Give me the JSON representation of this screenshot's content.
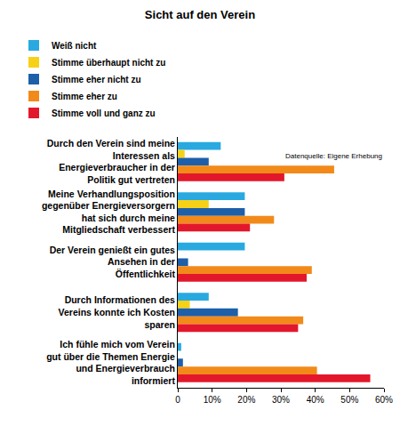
{
  "chart_data": {
    "type": "bar",
    "title": "Sicht auf den Verein",
    "orientation": "horizontal",
    "categories": [
      "Durch den Verein sind meine Interessen als Energieverbraucher in der Politik gut vertreten",
      "Meine Verhandlungsposition gegenüber Energieversorgern hat sich durch meine Mitgliedschaft verbessert",
      "Der Verein genießt ein gutes Ansehen in der Öffentlichkeit",
      "Durch Informationen des Vereins konnte ich Kosten sparen",
      "Ich fühle mich vom Verein gut über die Themen Energie und Energieverbrauch informiert"
    ],
    "series": [
      {
        "name": "Weiß nicht",
        "color": "#29a9e0",
        "values": [
          12.5,
          19.5,
          19.5,
          9,
          1
        ]
      },
      {
        "name": "Stimme überhaupt nicht zu",
        "color": "#f7d117",
        "values": [
          2,
          9,
          0,
          3.5,
          0
        ]
      },
      {
        "name": "Stimme eher nicht zu",
        "color": "#1d5fa8",
        "values": [
          9,
          19.5,
          3,
          17.5,
          1.5
        ]
      },
      {
        "name": "Stimme eher zu",
        "color": "#f28a1a",
        "values": [
          45.5,
          28,
          39,
          36.5,
          40.5
        ]
      },
      {
        "name": "Stimme voll und ganz zu",
        "color": "#e3172b",
        "values": [
          31,
          21,
          37.5,
          35,
          56
        ]
      }
    ],
    "xlim": [
      0,
      60
    ],
    "xticks": [
      0,
      {
        "value": 10,
        "label": "10%"
      },
      {
        "value": 20,
        "label": "20%"
      },
      {
        "value": 30,
        "label": "30%"
      },
      {
        "value": 40,
        "label": "40%"
      },
      {
        "value": 50,
        "label": "50%"
      },
      {
        "value": 60,
        "label": "60%"
      }
    ],
    "grid": false,
    "legend": "top",
    "annotations": [
      "Datenquelle: Eigene Erhebung"
    ]
  }
}
